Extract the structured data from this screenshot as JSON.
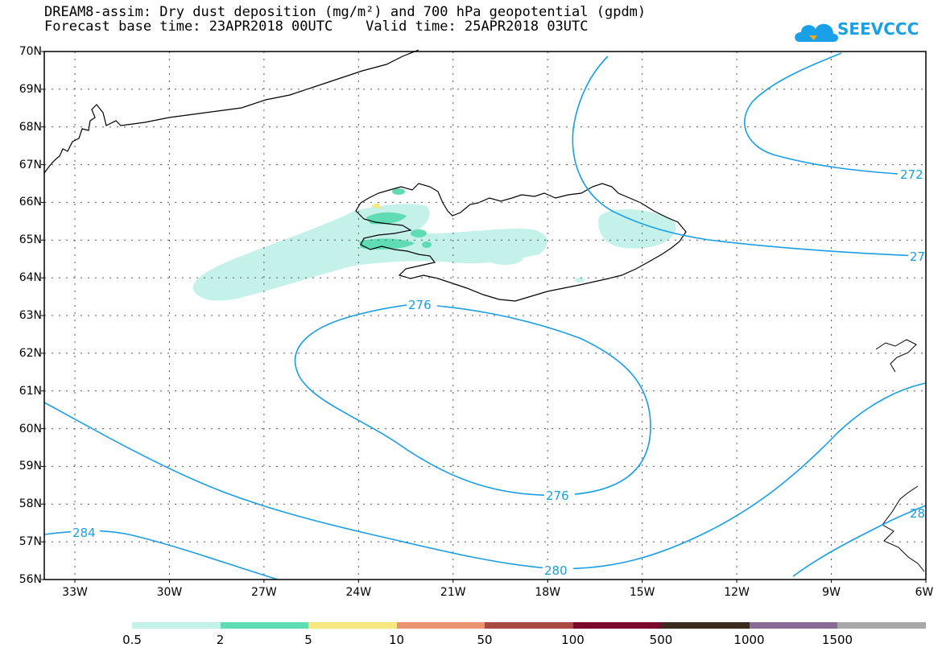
{
  "header": {
    "title_line1": "DREAM8-assim: Dry dust deposition (mg/m²) and 700 hPa geopotential (gpdm)",
    "title_line2": "Forecast base time: 23APR2018 00UTC    Valid time: 25APR2018 03UTC",
    "logo_text": "SEEVCCC",
    "logo_icon": "cloud-icon"
  },
  "axes": {
    "lat_labels": [
      "70N",
      "69N",
      "68N",
      "67N",
      "66N",
      "65N",
      "64N",
      "63N",
      "62N",
      "61N",
      "60N",
      "59N",
      "58N",
      "57N",
      "56N"
    ],
    "lon_labels": [
      "33W",
      "30W",
      "27W",
      "24W",
      "21W",
      "18W",
      "15W",
      "12W",
      "9W",
      "6W"
    ]
  },
  "contours": {
    "color": "#1a9de6",
    "labels": [
      "276",
      "276",
      "280",
      "284",
      "272",
      "27",
      "28"
    ]
  },
  "colorbar": {
    "colors": [
      "#c4f2ea",
      "#5fdcb4",
      "#f8e77e",
      "#ea9470",
      "#a84a42",
      "#7a0a2c",
      "#3a2a1c",
      "#8a6a96",
      "#a8a8a8"
    ],
    "labels": [
      "0.5",
      "2",
      "5",
      "10",
      "50",
      "100",
      "500",
      "1000",
      "1500"
    ]
  },
  "dust_color": "#c4f2ea"
}
